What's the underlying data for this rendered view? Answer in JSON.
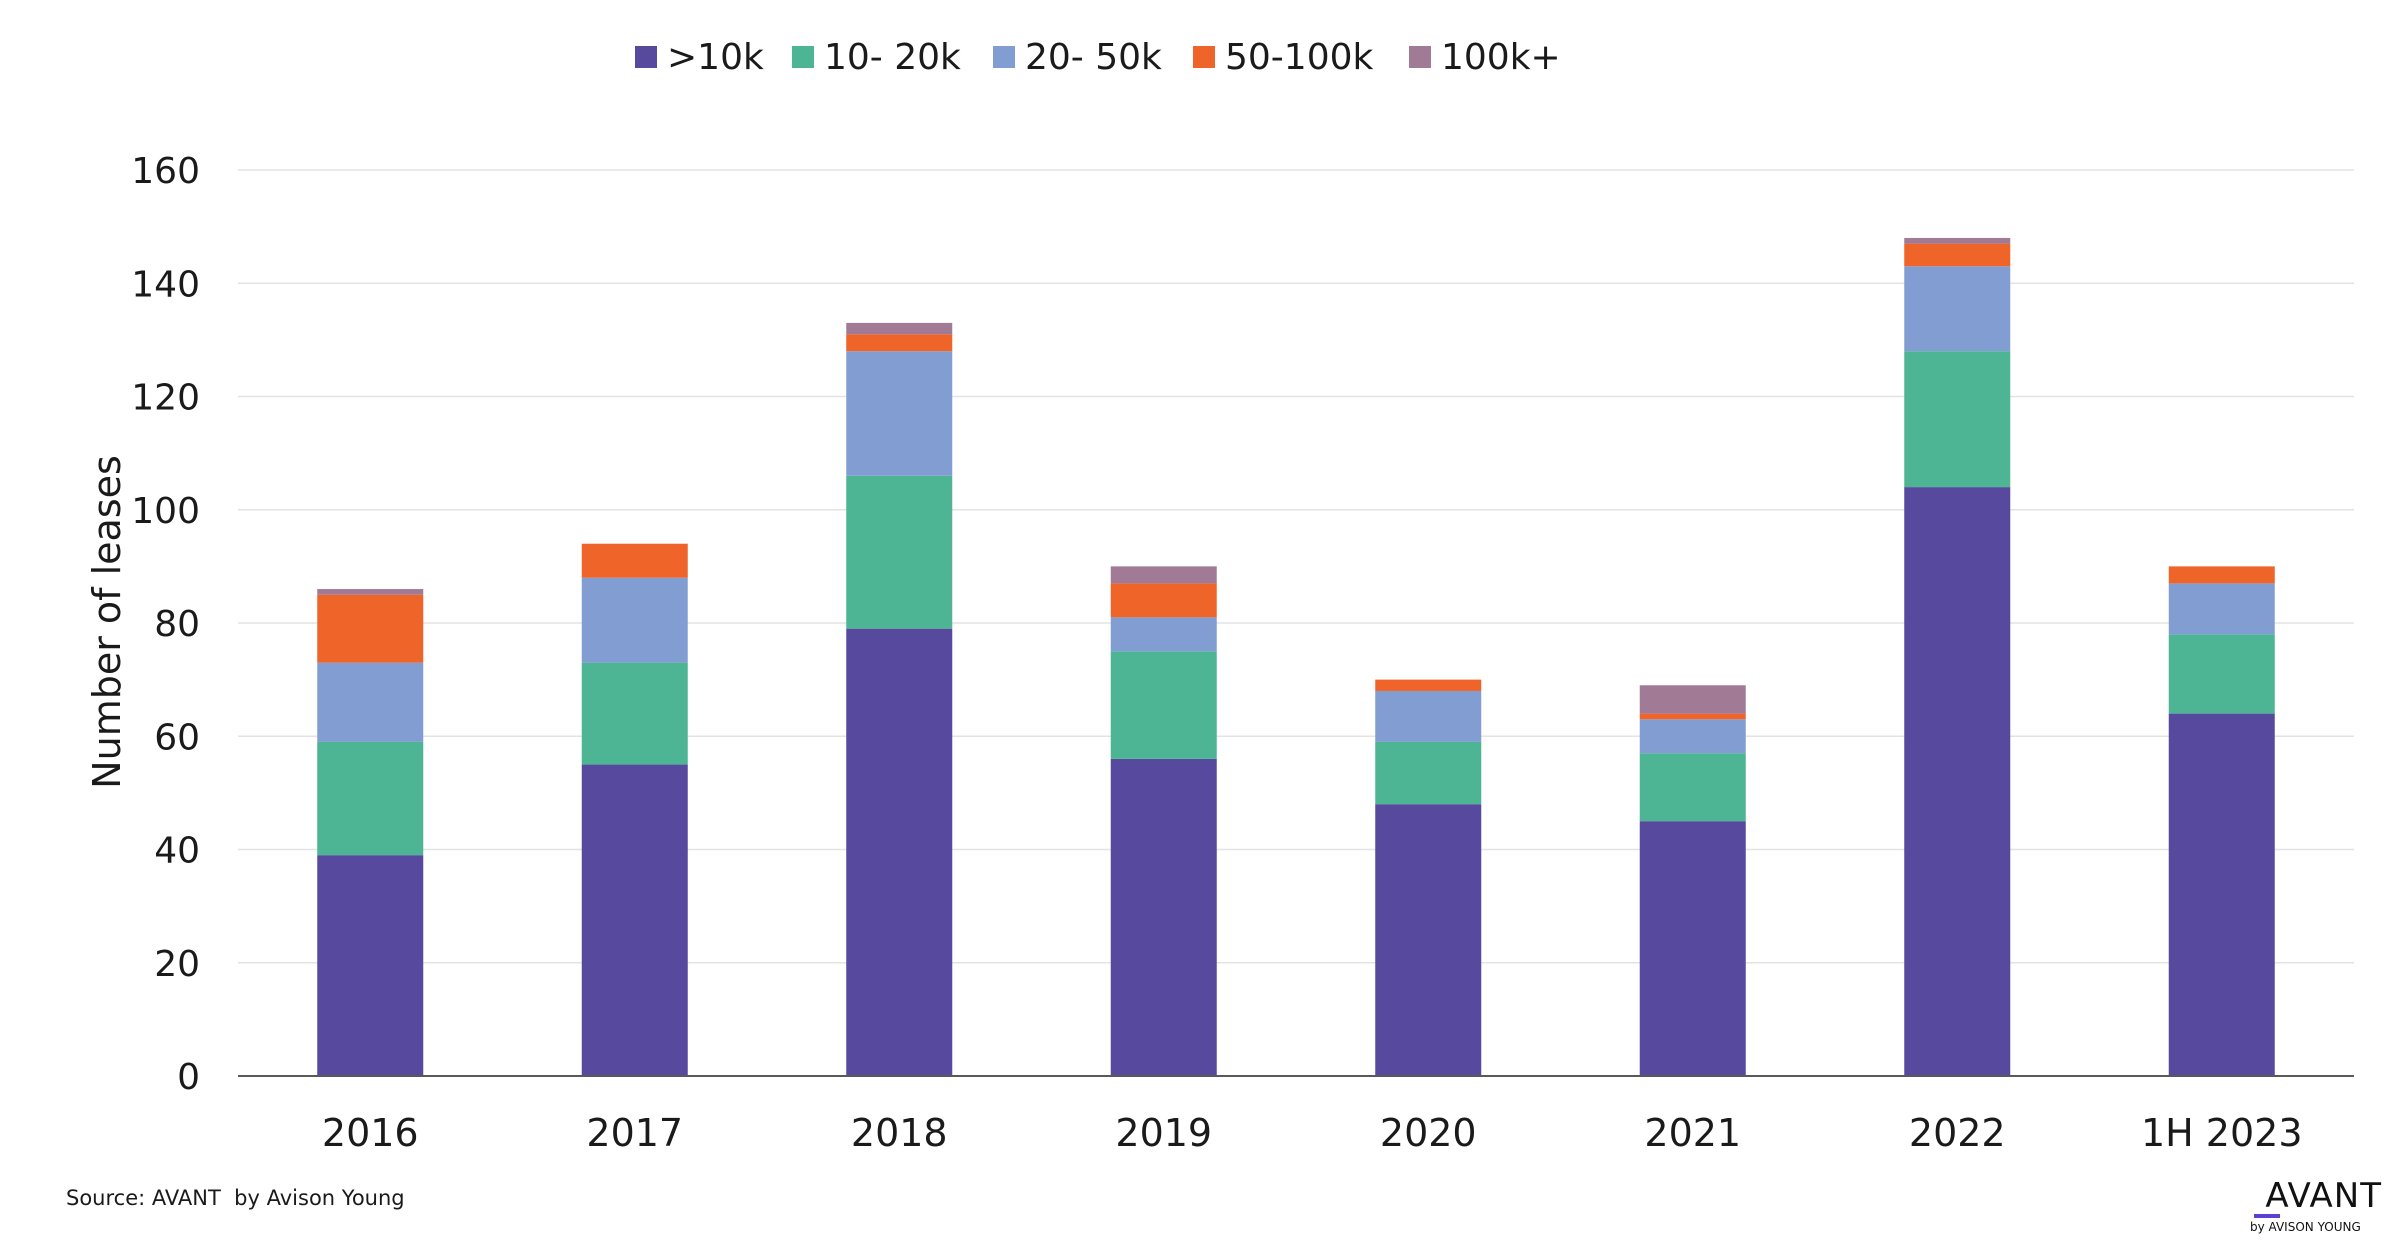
{
  "chart_data": {
    "type": "bar",
    "stacked": true,
    "title": "",
    "xlabel": "",
    "ylabel": "Number of leases",
    "ylim": [
      0,
      160
    ],
    "yticks": [
      0,
      20,
      40,
      60,
      80,
      100,
      120,
      140,
      160
    ],
    "grid": true,
    "legend_position": "top-center",
    "categories": [
      "2016",
      "2017",
      "2018",
      "2019",
      "2020",
      "2021",
      "2022",
      "1H 2023"
    ],
    "series": [
      {
        "name": ">10k",
        "color": "#56499E",
        "values": [
          39,
          55,
          79,
          56,
          48,
          45,
          104,
          64
        ]
      },
      {
        "name": "10- 20k",
        "color": "#4DB594",
        "values": [
          20,
          18,
          27,
          19,
          11,
          12,
          24,
          14
        ]
      },
      {
        "name": "20- 50k",
        "color": "#819DD2",
        "values": [
          14,
          15,
          22,
          6,
          9,
          6,
          15,
          9
        ]
      },
      {
        "name": "50-100k",
        "color": "#EF6428",
        "values": [
          12,
          6,
          3,
          6,
          2,
          1,
          4,
          3
        ]
      },
      {
        "name": "100k+",
        "color": "#A17B95",
        "values": [
          1,
          0,
          2,
          3,
          0,
          5,
          1,
          0
        ]
      }
    ]
  },
  "footer": {
    "source": "Source: AVANT  by Avison Young"
  },
  "logo": {
    "main": "AVANT",
    "sub": "by AVISON YOUNG"
  }
}
